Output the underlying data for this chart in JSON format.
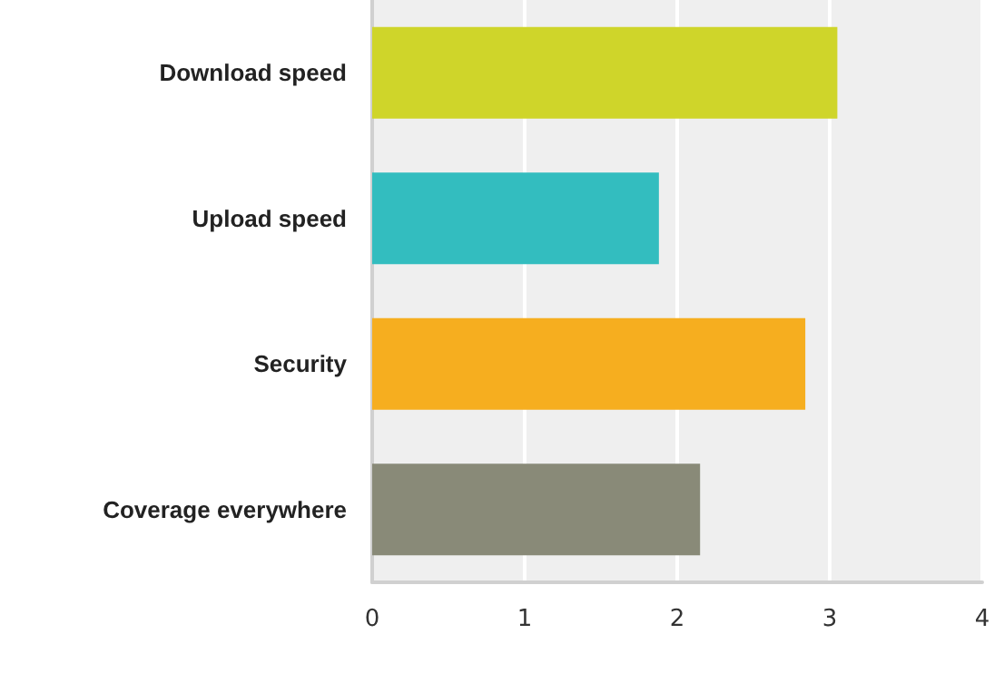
{
  "chart_data": {
    "type": "bar",
    "orientation": "horizontal",
    "categories": [
      "Download speed",
      "Upload speed",
      "Security",
      "Coverage everywhere"
    ],
    "values": [
      3.05,
      1.88,
      2.84,
      2.15
    ],
    "colors": [
      "#cfd52a",
      "#33bdbf",
      "#f6ae1f",
      "#898a78"
    ],
    "xlim": [
      0,
      4
    ],
    "xticks": [
      0,
      1,
      2,
      3,
      4
    ],
    "grid": "x"
  }
}
